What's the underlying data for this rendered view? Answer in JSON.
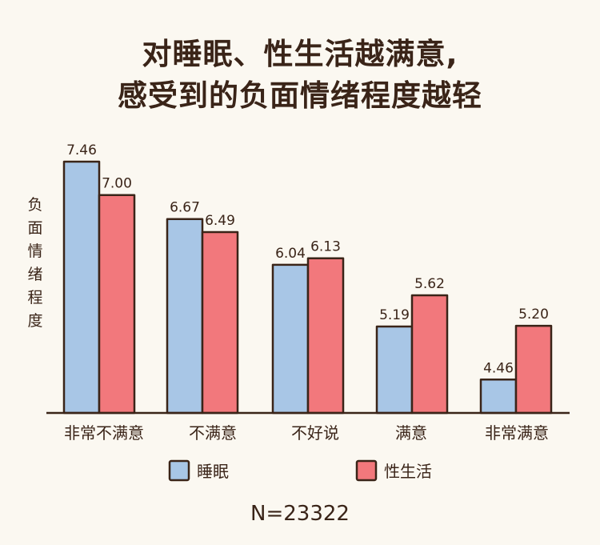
{
  "colors": {
    "sleep": "#a8c6e6",
    "sex": "#f2787c",
    "ink": "#3a2418",
    "background": "#fbf8f1"
  },
  "chart_data": {
    "type": "bar",
    "title_lines": [
      "对睡眠、性生活越满意,",
      "感受到的负面情绪程度越轻"
    ],
    "xlabel": "",
    "ylabel": "负面情绪程度",
    "categories": [
      "非常不满意",
      "不满意",
      "不好说",
      "满意",
      "非常满意"
    ],
    "series": [
      {
        "name": "睡眠",
        "values": [
          7.46,
          6.67,
          6.04,
          5.19,
          4.46
        ],
        "labels": [
          "7.46",
          "6.67",
          "6.04",
          "5.19",
          "4.46"
        ]
      },
      {
        "name": "性生活",
        "values": [
          7.0,
          6.49,
          6.13,
          5.62,
          5.2
        ],
        "labels": [
          "7.00",
          "6.49",
          "6.13",
          "5.62",
          "5.20"
        ]
      }
    ],
    "ylim": [
      4.0,
      7.6
    ],
    "grid": false,
    "legend_position": "bottom",
    "note": "N=23322"
  }
}
